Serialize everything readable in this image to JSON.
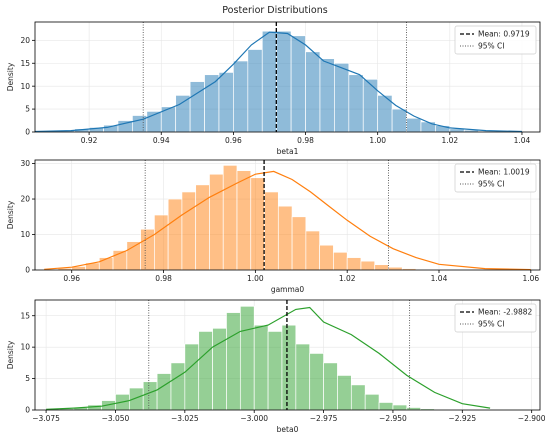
{
  "figure": {
    "title": "Posterior Distributions"
  },
  "chart_data": [
    {
      "type": "bar",
      "xlabel": "beta1",
      "ylabel": "Density",
      "color": "#1f77b4",
      "xlim": [
        0.905,
        1.045
      ],
      "ylim": [
        0,
        24
      ],
      "xticks": [
        0.92,
        0.94,
        0.96,
        0.98,
        1.0,
        1.02,
        1.04
      ],
      "xtick_labels": [
        "0.92",
        "0.94",
        "0.96",
        "0.98",
        "1.00",
        "1.02",
        "1.04"
      ],
      "yticks": [
        0,
        5,
        10,
        15,
        20
      ],
      "ytick_labels": [
        "0",
        "5",
        "10",
        "15",
        "20"
      ],
      "bin_start": 0.904,
      "bin_width": 0.004,
      "densities": [
        0.1,
        0.2,
        0.4,
        0.7,
        1.0,
        1.5,
        2.5,
        3.6,
        4.5,
        5.5,
        8.0,
        11.0,
        12.5,
        13.0,
        15.5,
        18.0,
        22.0,
        22.0,
        21.0,
        17.5,
        16.0,
        15.0,
        12.5,
        11.5,
        8.0,
        5.0,
        3.0,
        2.2,
        1.4,
        0.7,
        0.4,
        0.2,
        0.1,
        0.05,
        0.02
      ],
      "kde_x": [
        0.905,
        0.915,
        0.925,
        0.935,
        0.945,
        0.955,
        0.96,
        0.965,
        0.97,
        0.975,
        0.98,
        0.985,
        0.99,
        0.995,
        1.0,
        1.005,
        1.01,
        1.015,
        1.02,
        1.03,
        1.04
      ],
      "kde_y": [
        0.1,
        0.3,
        1.0,
        2.8,
        6.0,
        11.0,
        14.8,
        19.0,
        21.8,
        21.5,
        19.0,
        15.5,
        14.0,
        12.5,
        9.0,
        5.8,
        3.5,
        1.8,
        0.9,
        0.3,
        0.1
      ],
      "mean": 0.9719,
      "ci": [
        0.935,
        1.008
      ],
      "legend": {
        "mean_label": "Mean: 0.9719",
        "ci_label": "95% CI",
        "position": "top-right"
      },
      "grid": true
    },
    {
      "type": "bar",
      "xlabel": "gamma0",
      "ylabel": "Density",
      "color": "#ff7f0e",
      "xlim": [
        0.952,
        1.062
      ],
      "ylim": [
        0,
        31
      ],
      "xticks": [
        0.96,
        0.98,
        1.0,
        1.02,
        1.04,
        1.06
      ],
      "xtick_labels": [
        "0.96",
        "0.98",
        "1.00",
        "1.02",
        "1.04",
        "1.06"
      ],
      "yticks": [
        0,
        10,
        20,
        30
      ],
      "ytick_labels": [
        "0",
        "10",
        "20",
        "30"
      ],
      "bin_start": 0.954,
      "bin_width": 0.003,
      "densities": [
        0.2,
        0.5,
        1.0,
        2.0,
        3.5,
        5.5,
        8.0,
        11.5,
        15.5,
        20.0,
        22.0,
        24.0,
        27.0,
        29.5,
        28.0,
        26.0,
        22.0,
        18.0,
        15.0,
        11.0,
        7.0,
        5.0,
        3.5,
        2.5,
        1.5,
        0.8,
        0.4,
        0.2,
        0.1
      ],
      "kde_x": [
        0.954,
        0.96,
        0.966,
        0.972,
        0.978,
        0.984,
        0.99,
        0.996,
        1.0,
        1.004,
        1.008,
        1.012,
        1.016,
        1.02,
        1.025,
        1.03,
        1.035,
        1.04,
        1.05,
        1.06
      ],
      "kde_y": [
        0.2,
        0.8,
        2.3,
        5.5,
        10.0,
        15.5,
        20.5,
        24.5,
        27.0,
        27.8,
        25.5,
        22.0,
        18.0,
        14.0,
        9.5,
        6.0,
        3.5,
        1.6,
        0.4,
        0.1
      ],
      "mean": 1.0019,
      "ci": [
        0.976,
        1.029
      ],
      "legend": {
        "mean_label": "Mean: 1.0019",
        "ci_label": "95% CI",
        "position": "top-right"
      },
      "grid": true
    },
    {
      "type": "bar",
      "xlabel": "beta0",
      "ylabel": "Density",
      "color": "#2ca02c",
      "xlim": [
        -3.079,
        -2.897
      ],
      "ylim": [
        0,
        17.5
      ],
      "xticks": [
        -3.075,
        -3.05,
        -3.025,
        -3.0,
        -2.975,
        -2.95,
        -2.925,
        -2.9
      ],
      "xtick_labels": [
        "−3.075",
        "−3.050",
        "−3.025",
        "−3.000",
        "−2.975",
        "−2.950",
        "−2.925",
        "−2.900"
      ],
      "yticks": [
        0,
        5,
        10,
        15
      ],
      "ytick_labels": [
        "0",
        "5",
        "10",
        "15"
      ],
      "bin_start": -3.08,
      "bin_width": 0.005,
      "densities": [
        0.05,
        0.1,
        0.2,
        0.4,
        0.8,
        1.5,
        2.5,
        3.5,
        4.5,
        5.8,
        7.5,
        10.5,
        12.5,
        13.0,
        15.5,
        16.5,
        13.5,
        12.5,
        13.5,
        10.5,
        9.0,
        7.5,
        5.5,
        4.0,
        2.5,
        1.2,
        0.8,
        0.4,
        0.2,
        0.1,
        0.05,
        0.02,
        0.01,
        0.01,
        0.01,
        0.01,
        0.01
      ],
      "kde_x": [
        -3.075,
        -3.065,
        -3.055,
        -3.045,
        -3.035,
        -3.025,
        -3.015,
        -3.005,
        -2.995,
        -2.985,
        -2.98,
        -2.975,
        -2.965,
        -2.955,
        -2.945,
        -2.935,
        -2.925,
        -2.915
      ],
      "kde_y": [
        0.1,
        0.3,
        0.6,
        1.5,
        3.2,
        6.0,
        10.0,
        12.5,
        13.5,
        16.0,
        16.3,
        14.0,
        12.0,
        9.0,
        5.5,
        2.8,
        1.0,
        0.3
      ],
      "mean": -2.9882,
      "ci": [
        -3.038,
        -2.944
      ],
      "legend": {
        "mean_label": "Mean: -2.9882",
        "ci_label": "95% CI",
        "position": "top-right"
      },
      "grid": true
    }
  ]
}
